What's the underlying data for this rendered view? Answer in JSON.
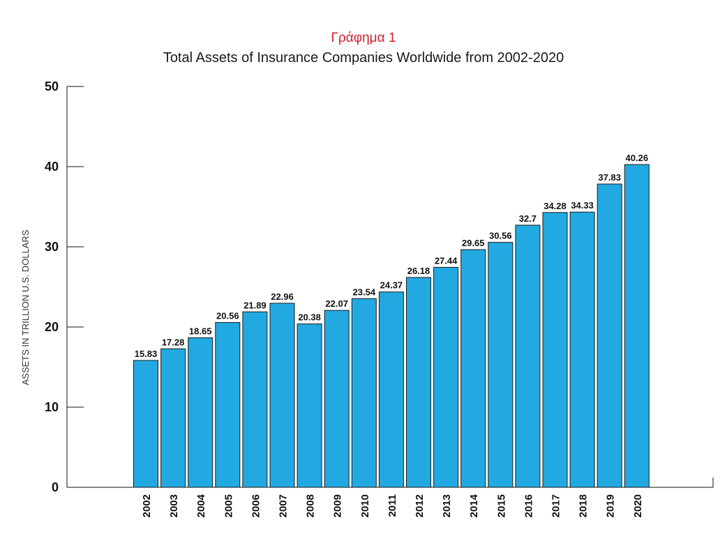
{
  "figure": {
    "label": "Γράφημα 1",
    "label_color": "#d0202e"
  },
  "chart_data": {
    "type": "bar",
    "title": "Total Assets of Insurance Companies Worldwide from 2002-2020",
    "xlabel": "",
    "ylabel": "ASSETS IN TRILLION U.S. DOLLARS",
    "categories": [
      "2002",
      "2003",
      "2004",
      "2005",
      "2006",
      "2007",
      "2008",
      "2009",
      "2010",
      "2011",
      "2012",
      "2013",
      "2014",
      "2015",
      "2016",
      "2017",
      "2018",
      "2019",
      "2020"
    ],
    "values": [
      15.83,
      17.28,
      18.65,
      20.56,
      21.89,
      22.96,
      20.38,
      22.07,
      23.54,
      24.37,
      26.18,
      27.44,
      29.65,
      30.56,
      32.7,
      34.28,
      34.33,
      37.83,
      40.26
    ],
    "value_labels": [
      "15.83",
      "17.28",
      "18.65",
      "20.56",
      "21.89",
      "22.96",
      "20.38",
      "22.07",
      "23.54",
      "24.37",
      "26.18",
      "27.44",
      "29.65",
      "30.56",
      "32.7",
      "34.28",
      "34.33",
      "37.83",
      "40.26"
    ],
    "ylim": [
      0,
      50
    ],
    "yticks": [
      0,
      10,
      20,
      30,
      40,
      50
    ],
    "grid": false,
    "legend": "none",
    "bar_color": "#22a9e1",
    "bar_edge_color": "#1a1a1a"
  }
}
